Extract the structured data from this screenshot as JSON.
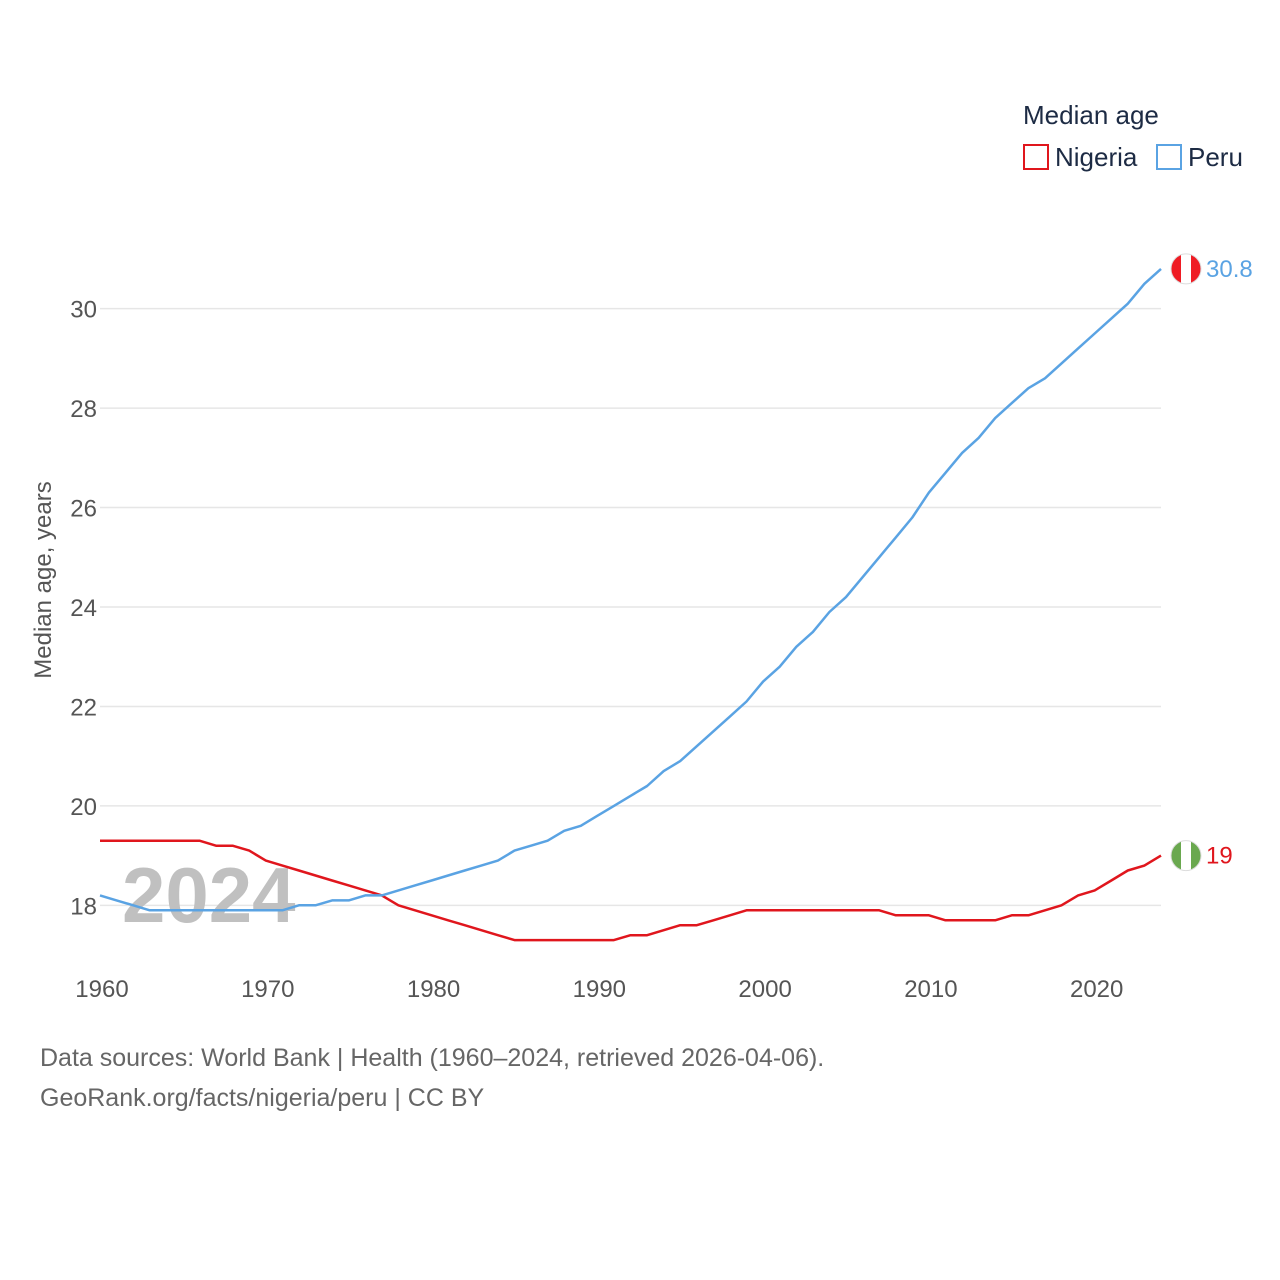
{
  "chart_data": {
    "type": "line",
    "title": "",
    "xlabel": "",
    "ylabel": "Median age, years",
    "xlim": [
      1960,
      2024
    ],
    "ylim": [
      16.8,
      31.2
    ],
    "x_ticks": [
      1960,
      1970,
      1980,
      1990,
      2000,
      2010,
      2020
    ],
    "y_ticks": [
      18,
      20,
      22,
      24,
      26,
      28,
      30
    ],
    "grid": true,
    "legend": {
      "title": "Median age",
      "position": "top-right"
    },
    "year_label": "2024",
    "x": [
      1960,
      1961,
      1962,
      1963,
      1964,
      1965,
      1966,
      1967,
      1968,
      1969,
      1970,
      1971,
      1972,
      1973,
      1974,
      1975,
      1976,
      1977,
      1978,
      1979,
      1980,
      1981,
      1982,
      1983,
      1984,
      1985,
      1986,
      1987,
      1988,
      1989,
      1990,
      1991,
      1992,
      1993,
      1994,
      1995,
      1996,
      1997,
      1998,
      1999,
      2000,
      2001,
      2002,
      2003,
      2004,
      2005,
      2006,
      2007,
      2008,
      2009,
      2010,
      2011,
      2012,
      2013,
      2014,
      2015,
      2016,
      2017,
      2018,
      2019,
      2020,
      2021,
      2022,
      2023,
      2024
    ],
    "series": [
      {
        "name": "Nigeria",
        "color": "#e0161d",
        "end_label": "19",
        "values": [
          19.3,
          19.3,
          19.3,
          19.3,
          19.3,
          19.3,
          19.3,
          19.2,
          19.2,
          19.1,
          18.9,
          18.8,
          18.7,
          18.6,
          18.5,
          18.4,
          18.3,
          18.2,
          18.0,
          17.9,
          17.8,
          17.7,
          17.6,
          17.5,
          17.4,
          17.3,
          17.3,
          17.3,
          17.3,
          17.3,
          17.3,
          17.3,
          17.4,
          17.4,
          17.5,
          17.6,
          17.6,
          17.7,
          17.8,
          17.9,
          17.9,
          17.9,
          17.9,
          17.9,
          17.9,
          17.9,
          17.9,
          17.9,
          17.8,
          17.8,
          17.8,
          17.7,
          17.7,
          17.7,
          17.7,
          17.8,
          17.8,
          17.9,
          18.0,
          18.2,
          18.3,
          18.5,
          18.7,
          18.8,
          19.0
        ]
      },
      {
        "name": "Peru",
        "color": "#5aa3e3",
        "end_label": "30.8",
        "values": [
          18.2,
          18.1,
          18.0,
          17.9,
          17.9,
          17.9,
          17.9,
          17.9,
          17.9,
          17.9,
          17.9,
          17.9,
          18.0,
          18.0,
          18.1,
          18.1,
          18.2,
          18.2,
          18.3,
          18.4,
          18.5,
          18.6,
          18.7,
          18.8,
          18.9,
          19.1,
          19.2,
          19.3,
          19.5,
          19.6,
          19.8,
          20.0,
          20.2,
          20.4,
          20.7,
          20.9,
          21.2,
          21.5,
          21.8,
          22.1,
          22.5,
          22.8,
          23.2,
          23.5,
          23.9,
          24.2,
          24.6,
          25.0,
          25.4,
          25.8,
          26.3,
          26.7,
          27.1,
          27.4,
          27.8,
          28.1,
          28.4,
          28.6,
          28.9,
          29.2,
          29.5,
          29.8,
          30.1,
          30.5,
          30.8
        ]
      }
    ]
  },
  "footer": {
    "line1": "Data sources: World Bank | Health (1960–2024, retrieved 2026-04-06).",
    "line2": "GeoRank.org/facts/nigeria/peru | CC BY"
  }
}
